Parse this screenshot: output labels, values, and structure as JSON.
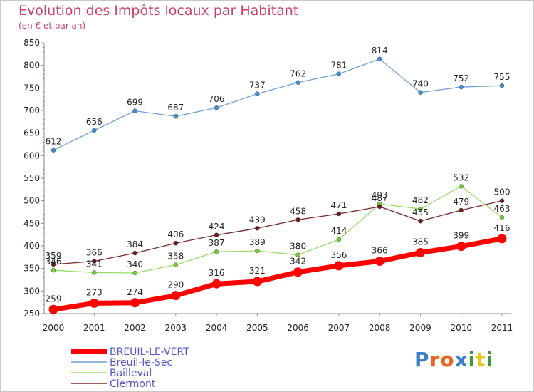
{
  "header": {
    "title": "Evolution des Impôts locaux par Habitant",
    "subtitle": "(en € et par an)"
  },
  "logo": {
    "text": "Proxiti",
    "letter_colors": [
      "#3a7fc8",
      "#e8641e",
      "#e8641e",
      "#3a7fc8",
      "#3a9a3a",
      "#e8c81e",
      "#3a9a3a"
    ]
  },
  "chart_data": {
    "type": "line",
    "title": "Evolution des Impôts locaux par Habitant",
    "subtitle": "(en € et par an)",
    "x": [
      "2000",
      "2001",
      "2002",
      "2003",
      "2004",
      "2005",
      "2006",
      "2007",
      "2008",
      "2009",
      "2010",
      "2011"
    ],
    "ylim": [
      250,
      850
    ],
    "yticks": [
      250,
      300,
      350,
      400,
      450,
      500,
      550,
      600,
      650,
      700,
      750,
      800,
      850
    ],
    "grid": false,
    "legend_position": "bottom-left",
    "series": [
      {
        "name": "BREUIL-LE-VERT",
        "color": "#ff0000",
        "emphasis": true,
        "values": [
          259,
          273,
          274,
          290,
          316,
          321,
          342,
          356,
          366,
          385,
          399,
          416
        ]
      },
      {
        "name": "Breuil-le-Sec",
        "color": "#6f9fd8",
        "point_color": "#3f8fd0",
        "values": [
          612,
          656,
          699,
          687,
          706,
          737,
          762,
          781,
          814,
          740,
          752,
          755
        ]
      },
      {
        "name": "Bailleval",
        "color": "#99dd66",
        "point_color": "#77cc33",
        "values": [
          346,
          341,
          340,
          358,
          387,
          389,
          380,
          414,
          493,
          482,
          532,
          463
        ]
      },
      {
        "name": "Clermont",
        "color": "#7a2a2a",
        "point_color": "#6a1a1a",
        "values": [
          359,
          366,
          384,
          406,
          424,
          439,
          458,
          471,
          487,
          455,
          479,
          500
        ]
      }
    ]
  }
}
